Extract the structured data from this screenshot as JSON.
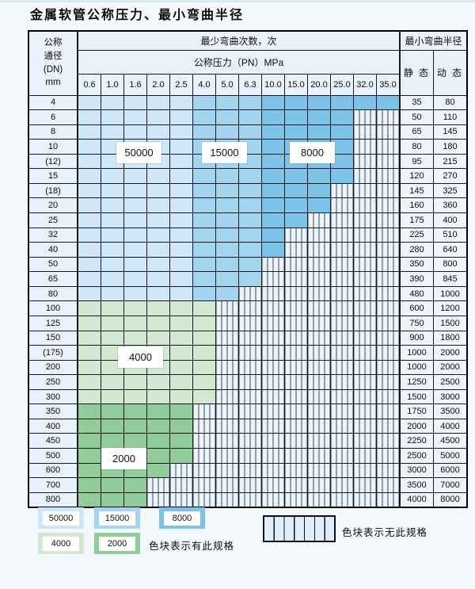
{
  "title": "金属软管公称压力、最小弯曲半径",
  "colors": {
    "c50000": "#cfe7f8",
    "c15000": "#a3d4f0",
    "c8000": "#7cc2e9",
    "c4000": "#d2e8d2",
    "c2000": "#92cc9c",
    "hatch_bg": "#ecf4fb",
    "hatch_line": "#3d474e",
    "header_bg": "#e9f1fa",
    "row_label_bg": "#e9f1fa",
    "value_bg": "#edf4fb",
    "grid_line": "#1a1a1a",
    "page_bg": "#f3f9fb"
  },
  "table": {
    "dn_header_lines": [
      "公称",
      "通径",
      "(DN)",
      "mm"
    ],
    "bend_count_header": "最少弯曲次数，次",
    "pressure_header": "公称压力（PN）MPa",
    "radius_header": "最小弯曲半径",
    "static_label": "静 态",
    "dynamic_label": "动 态",
    "pressure_columns": [
      "0.6",
      "1.0",
      "1.6",
      "2.0",
      "2.5",
      "4.0",
      "5.0",
      "6.3",
      "10.0",
      "15.0",
      "20.0",
      "25.0",
      "32.0",
      "35.0"
    ],
    "region_labels": {
      "r50000": "50000",
      "r15000": "15000",
      "r8000": "8000",
      "r4000": "4000",
      "r2000": "2000"
    },
    "bend_cycle_regions": [
      {
        "cycles": "50000",
        "dn_rows": "4–80 (within colored extent)",
        "pressure_columns": "0.6–2.5"
      },
      {
        "cycles": "15000",
        "dn_rows": "4–80 (within colored extent)",
        "pressure_columns": "4.0–6.3"
      },
      {
        "cycles": "8000",
        "dn_rows": "4–80 (within colored extent)",
        "pressure_columns": "10.0–35.0"
      },
      {
        "cycles": "4000",
        "dn_rows": "100–300",
        "pressure_columns": "0.6–4.0"
      },
      {
        "cycles": "2000",
        "dn_rows": "350–800 (within colored extent)",
        "pressure_columns": "0.6–2.5 (500), 2.0 (600), 1.6 (700–800)"
      }
    ],
    "rows": [
      {
        "dn": "4",
        "last_spec_col": 13,
        "static": "35",
        "dynamic": "80"
      },
      {
        "dn": "6",
        "last_spec_col": 11,
        "static": "50",
        "dynamic": "110"
      },
      {
        "dn": "8",
        "last_spec_col": 11,
        "static": "65",
        "dynamic": "145"
      },
      {
        "dn": "10",
        "last_spec_col": 11,
        "static": "80",
        "dynamic": "180"
      },
      {
        "dn": "(12)",
        "last_spec_col": 11,
        "static": "95",
        "dynamic": "215"
      },
      {
        "dn": "15",
        "last_spec_col": 11,
        "static": "120",
        "dynamic": "270"
      },
      {
        "dn": "(18)",
        "last_spec_col": 10,
        "static": "145",
        "dynamic": "325"
      },
      {
        "dn": "20",
        "last_spec_col": 10,
        "static": "160",
        "dynamic": "360"
      },
      {
        "dn": "25",
        "last_spec_col": 9,
        "static": "175",
        "dynamic": "400"
      },
      {
        "dn": "32",
        "last_spec_col": 8,
        "static": "225",
        "dynamic": "510"
      },
      {
        "dn": "40",
        "last_spec_col": 8,
        "static": "280",
        "dynamic": "640"
      },
      {
        "dn": "50",
        "last_spec_col": 7,
        "static": "350",
        "dynamic": "800"
      },
      {
        "dn": "65",
        "last_spec_col": 7,
        "static": "390",
        "dynamic": "845"
      },
      {
        "dn": "80",
        "last_spec_col": 6,
        "static": "480",
        "dynamic": "1000"
      },
      {
        "dn": "100",
        "last_spec_col": 5,
        "static": "600",
        "dynamic": "1200"
      },
      {
        "dn": "125",
        "last_spec_col": 5,
        "static": "750",
        "dynamic": "1500"
      },
      {
        "dn": "150",
        "last_spec_col": 5,
        "static": "900",
        "dynamic": "1800"
      },
      {
        "dn": "(175)",
        "last_spec_col": 5,
        "static": "1000",
        "dynamic": "2000"
      },
      {
        "dn": "200",
        "last_spec_col": 5,
        "static": "1000",
        "dynamic": "2000"
      },
      {
        "dn": "250",
        "last_spec_col": 5,
        "static": "1250",
        "dynamic": "2500"
      },
      {
        "dn": "300",
        "last_spec_col": 5,
        "static": "1500",
        "dynamic": "3000"
      },
      {
        "dn": "350",
        "last_spec_col": 4,
        "static": "1750",
        "dynamic": "3500"
      },
      {
        "dn": "400",
        "last_spec_col": 4,
        "static": "2000",
        "dynamic": "4000"
      },
      {
        "dn": "450",
        "last_spec_col": 4,
        "static": "2250",
        "dynamic": "4500"
      },
      {
        "dn": "500",
        "last_spec_col": 4,
        "static": "2500",
        "dynamic": "5000"
      },
      {
        "dn": "600",
        "last_spec_col": 3,
        "static": "3000",
        "dynamic": "6000"
      },
      {
        "dn": "700",
        "last_spec_col": 2,
        "static": "3500",
        "dynamic": "7000"
      },
      {
        "dn": "800",
        "last_spec_col": 2,
        "static": "4000",
        "dynamic": "8000"
      }
    ]
  },
  "legend": {
    "swatches": [
      {
        "label": "50000",
        "color_key": "c50000"
      },
      {
        "label": "15000",
        "color_key": "c15000"
      },
      {
        "label": "8000",
        "color_key": "c8000"
      },
      {
        "label": "4000",
        "color_key": "c4000"
      },
      {
        "label": "2000",
        "color_key": "c2000"
      }
    ],
    "has_spec_text": "色块表示有此规格",
    "no_spec_text": "色块表示无此规格"
  }
}
